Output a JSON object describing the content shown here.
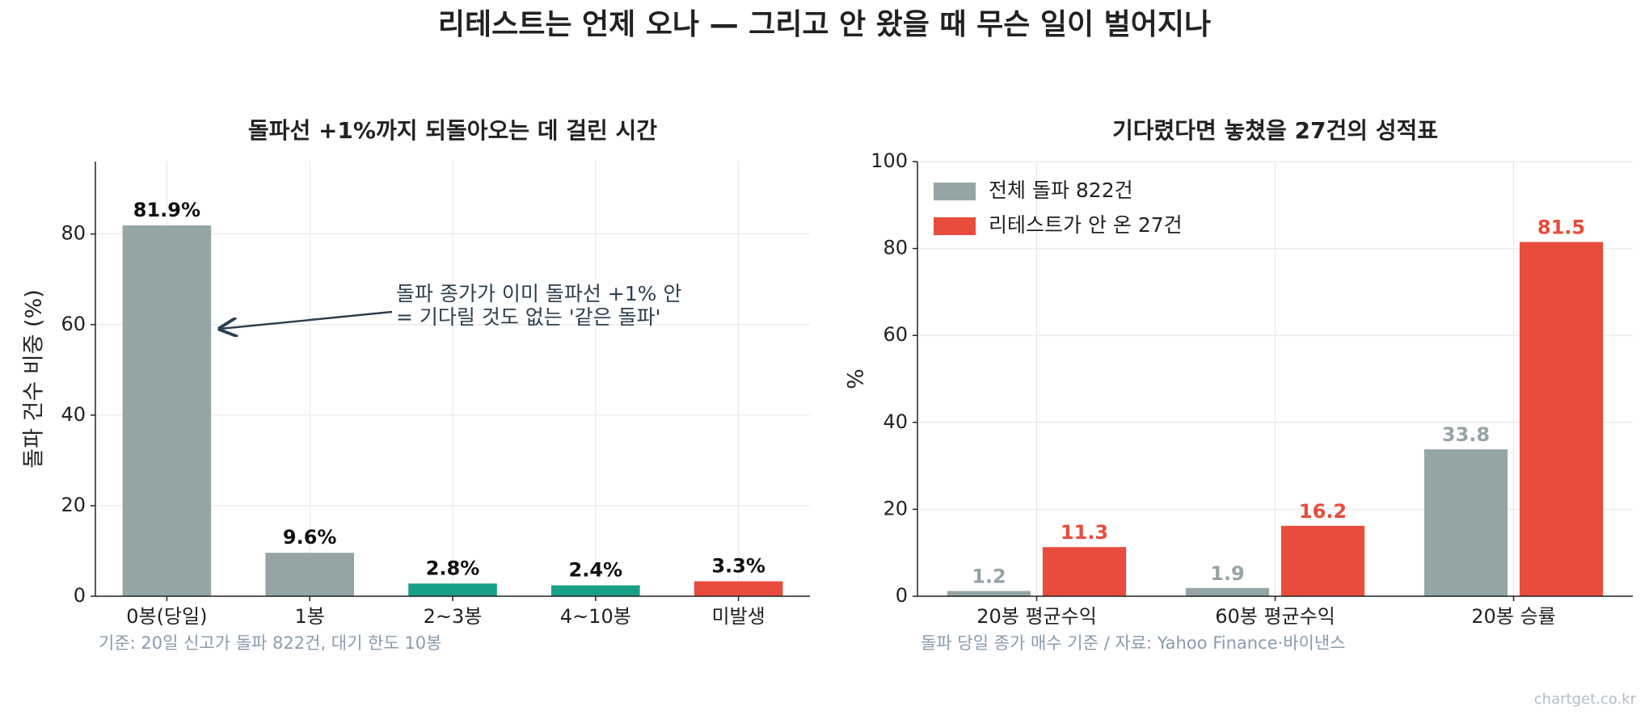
{
  "title": "리테스트는 언제 오나 — 그리고 안 왔을 때 무슨 일이 벌어지나",
  "watermark": "chartget.co.kr",
  "chart_data": [
    {
      "type": "bar",
      "title": "돌파선 +1%까지 되돌아오는 데 걸린 시간",
      "ylabel": "돌파 건수 비중 (%)",
      "categories": [
        "0봉(당일)",
        "1봉",
        "2~3봉",
        "4~10봉",
        "미발생"
      ],
      "values": [
        81.9,
        9.6,
        2.8,
        2.4,
        3.3
      ],
      "value_labels": [
        "81.9%",
        "9.6%",
        "2.8%",
        "2.4%",
        "3.3%"
      ],
      "colors": [
        "#95a5a6",
        "#95a5a6",
        "#16a085",
        "#16a085",
        "#e74c3c"
      ],
      "ylim": [
        0,
        96
      ],
      "yticks": [
        0,
        20,
        40,
        60,
        80
      ],
      "grid": true,
      "annotation": [
        "돌파 종가가 이미 돌파선 +1% 안",
        "= 기다릴 것도 없는 '같은 돌파'"
      ],
      "footnote": "기준: 20일 신고가 돌파 822건, 대기 한도 10봉"
    },
    {
      "type": "grouped-bar",
      "title": "기다렸다면 놓쳤을 27건의 성적표",
      "ylabel": "%",
      "categories": [
        "20봉 평균수익",
        "60봉 평균수익",
        "20봉 승률"
      ],
      "series": [
        {
          "name": "전체 돌파 822건",
          "color": "#95a5a6",
          "values": [
            1.2,
            1.9,
            33.8
          ]
        },
        {
          "name": "리테스트가 안 온 27건",
          "color": "#e74c3c",
          "values": [
            11.3,
            16.2,
            81.5
          ]
        }
      ],
      "ylim": [
        0,
        100
      ],
      "yticks": [
        0,
        20,
        40,
        60,
        80,
        100
      ],
      "grid": true,
      "legend": "upper-left",
      "footnote": "돌파 당일 종가 매수 기준 / 자료: Yahoo Finance·바이낸스"
    }
  ]
}
